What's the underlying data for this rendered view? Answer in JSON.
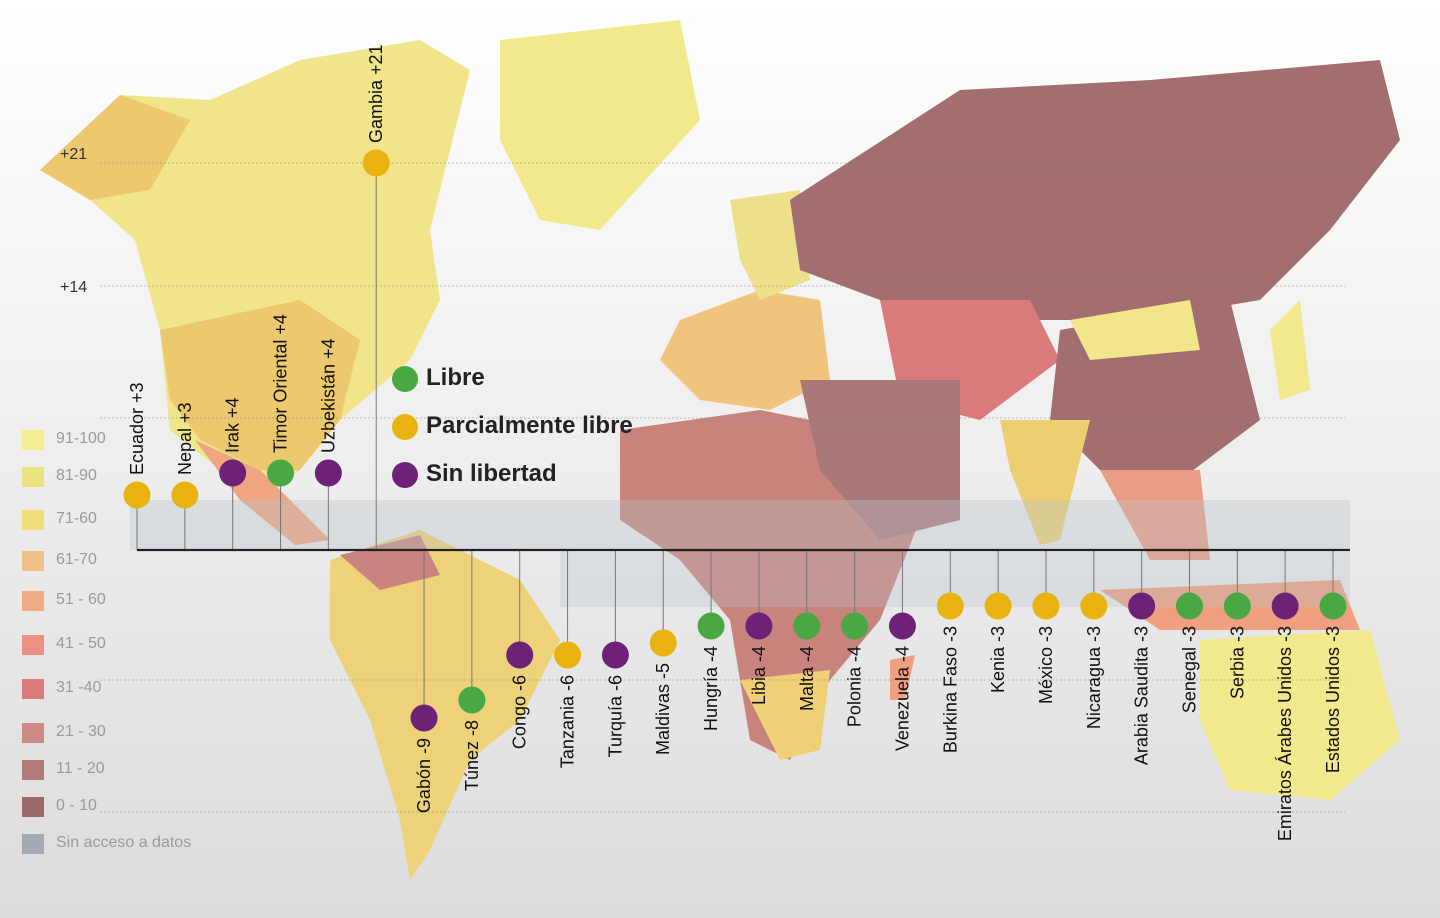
{
  "legend_scale": [
    {
      "label": "91-100",
      "color": "#f5ee90"
    },
    {
      "label": "81-90",
      "color": "#e9e37f"
    },
    {
      "label": "71-60",
      "color": "#f3dc7a"
    },
    {
      "label": "61-70",
      "color": "#f0c089"
    },
    {
      "label": "51 - 60",
      "color": "#efac84"
    },
    {
      "label": "41 - 50",
      "color": "#ee8f84"
    },
    {
      "label": "31 -40",
      "color": "#dc7b7e"
    },
    {
      "label": "21 - 30",
      "color": "#c98a88"
    },
    {
      "label": "11 - 20",
      "color": "#b07a78"
    },
    {
      "label": "0 - 10",
      "color": "#9a6a6b"
    },
    {
      "label": "Sin acceso a datos",
      "color": "#a3aab1"
    }
  ],
  "status_legend": [
    {
      "key": "libre",
      "label": "Libre",
      "color": "#4aa844"
    },
    {
      "key": "parcial",
      "label": "Parcialmente libre",
      "color": "#e8b210"
    },
    {
      "key": "sin",
      "label": "Sin libertad",
      "color": "#6e2277"
    }
  ],
  "chart_data": {
    "type": "scatter",
    "title": "",
    "xlabel": "",
    "ylabel": "",
    "y_ticks": [
      "+21",
      "+14"
    ],
    "points": [
      {
        "country": "Ecuador",
        "label": "Ecuador +3",
        "change": 3,
        "status": "parcial"
      },
      {
        "country": "Nepal",
        "label": "Nepal +3",
        "change": 3,
        "status": "parcial"
      },
      {
        "country": "Irak",
        "label": "Irak +4",
        "change": 4,
        "status": "sin"
      },
      {
        "country": "Timor Oriental",
        "label": "Timor Oriental +4",
        "change": 4,
        "status": "libre"
      },
      {
        "country": "Uzbekistán",
        "label": "Uzbekistán +4",
        "change": 4,
        "status": "sin"
      },
      {
        "country": "Gambia",
        "label": "Gambia +21",
        "change": 21,
        "status": "parcial"
      },
      {
        "country": "Gabón",
        "label": "Gabón -9",
        "change": -9,
        "status": "sin"
      },
      {
        "country": "Túnez",
        "label": "Túnez -8",
        "change": -8,
        "status": "libre"
      },
      {
        "country": "Congo",
        "label": "Congo -6",
        "change": -6,
        "status": "sin"
      },
      {
        "country": "Tanzania",
        "label": "Tanzania -6",
        "change": -6,
        "status": "parcial"
      },
      {
        "country": "Turquía",
        "label": "Turquía -6",
        "change": -6,
        "status": "sin"
      },
      {
        "country": "Maldivas",
        "label": "Maldivas -5",
        "change": -5,
        "status": "parcial"
      },
      {
        "country": "Hungría",
        "label": "Hungría -4",
        "change": -4,
        "status": "libre"
      },
      {
        "country": "Libia",
        "label": "Libia -4",
        "change": -4,
        "status": "sin"
      },
      {
        "country": "Malta",
        "label": "Malta -4",
        "change": -4,
        "status": "libre"
      },
      {
        "country": "Polonia",
        "label": "Polonia -4",
        "change": -4,
        "status": "libre"
      },
      {
        "country": "Venezuela",
        "label": "Venezuela -4",
        "change": -4,
        "status": "sin"
      },
      {
        "country": "Burkina Faso",
        "label": "Burkina Faso -3",
        "change": -3,
        "status": "parcial"
      },
      {
        "country": "Kenia",
        "label": "Kenia -3",
        "change": -3,
        "status": "parcial"
      },
      {
        "country": "México",
        "label": "México -3",
        "change": -3,
        "status": "parcial"
      },
      {
        "country": "Nicaragua",
        "label": "Nicaragua -3",
        "change": -3,
        "status": "parcial"
      },
      {
        "country": "Arabia Saudita",
        "label": "Arabia Saudita -3",
        "change": -3,
        "status": "sin"
      },
      {
        "country": "Senegal",
        "label": "Senegal -3",
        "change": -3,
        "status": "libre"
      },
      {
        "country": "Serbia",
        "label": "Serbia -3",
        "change": -3,
        "status": "libre"
      },
      {
        "country": "Emiratos Árabes Unidos",
        "label": "Emiratos Árabes Unidos -3",
        "change": -3,
        "status": "sin"
      },
      {
        "country": "Estados Unidos",
        "label": "Estados Unidos -3",
        "change": -3,
        "status": "libre"
      }
    ]
  }
}
